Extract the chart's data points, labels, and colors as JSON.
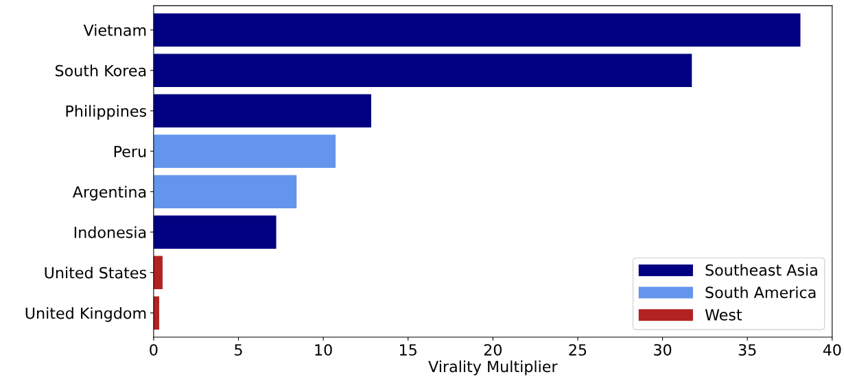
{
  "chart_data": {
    "type": "bar",
    "orientation": "horizontal",
    "xlabel": "Virality Multiplier",
    "categories": [
      "Vietnam",
      "South Korea",
      "Philippines",
      "Peru",
      "Argentina",
      "Indonesia",
      "United States",
      "United Kingdom"
    ],
    "series": [
      {
        "name": "Southeast Asia",
        "color": "#000080",
        "values": [
          38.1,
          31.7,
          12.8,
          null,
          null,
          7.2,
          null,
          null
        ]
      },
      {
        "name": "South America",
        "color": "#6495ed",
        "values": [
          null,
          null,
          null,
          10.7,
          8.4,
          null,
          null,
          null
        ]
      },
      {
        "name": "West",
        "color": "#b22222",
        "values": [
          null,
          null,
          null,
          null,
          null,
          null,
          0.5,
          0.3
        ]
      }
    ],
    "xlim": [
      0,
      40
    ],
    "xticks": [
      0,
      5,
      10,
      15,
      20,
      25,
      30,
      35,
      40
    ],
    "grid": false,
    "legend": "bottom right"
  }
}
